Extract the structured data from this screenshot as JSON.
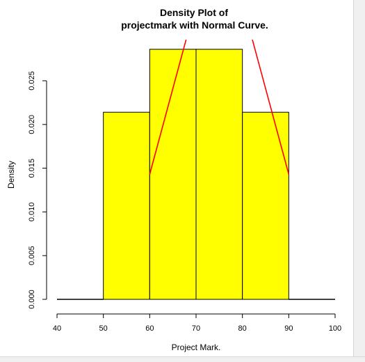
{
  "chart_data": {
    "type": "bar",
    "title_line1": "Density Plot of",
    "title_line2": "projectmark with Normal Curve.",
    "xlabel": "Project Mark.",
    "ylabel": "Density",
    "xlim": [
      40,
      100
    ],
    "ylim": [
      0,
      0.028
    ],
    "x_ticks": [
      "40",
      "50",
      "60",
      "70",
      "80",
      "90",
      "100"
    ],
    "y_ticks": [
      "0.000",
      "0.005",
      "0.010",
      "0.015",
      "0.020",
      "0.025"
    ],
    "bins": [
      {
        "from": 40,
        "to": 50,
        "density": 0.0
      },
      {
        "from": 50,
        "to": 60,
        "density": 0.0214
      },
      {
        "from": 60,
        "to": 70,
        "density": 0.0286
      },
      {
        "from": 70,
        "to": 80,
        "density": 0.0286
      },
      {
        "from": 80,
        "to": 90,
        "density": 0.0214
      },
      {
        "from": 90,
        "to": 100,
        "density": 0.0
      }
    ],
    "normal_curve": {
      "segments": [
        [
          [
            60,
            0.0143
          ],
          [
            68,
            0.03
          ]
        ],
        [
          [
            82,
            0.03
          ],
          [
            90,
            0.0143
          ]
        ]
      ]
    },
    "bar_color": "#ffff00",
    "bar_border_color": "#000000",
    "curve_color": "#ff0000"
  }
}
